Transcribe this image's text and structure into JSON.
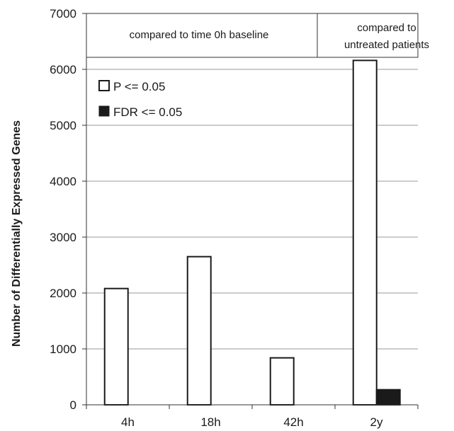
{
  "chart_data": {
    "type": "bar",
    "categories": [
      "4h",
      "18h",
      "42h",
      "2y"
    ],
    "series": [
      {
        "name": "P <= 0.05",
        "values": [
          2080,
          2650,
          840,
          6160
        ],
        "color": "#ffffff"
      },
      {
        "name": "FDR <= 0.05",
        "values": [
          0,
          0,
          0,
          270
        ],
        "color": "#1a1a1a"
      }
    ],
    "title": "",
    "xlabel": "",
    "ylabel": "Number of Differentially Expressed Genes",
    "ylim": [
      0,
      7000
    ],
    "yticks": [
      "0",
      "1000",
      "2000",
      "3000",
      "4000",
      "5000",
      "6000",
      "7000"
    ],
    "grid": true,
    "legend_position": "top-left",
    "annotations": [
      {
        "text": "compared to time 0h baseline",
        "span": [
          "4h",
          "42h"
        ]
      },
      {
        "text_lines": [
          "compared to",
          "untreated patients"
        ],
        "span": [
          "2y",
          "2y"
        ]
      }
    ]
  }
}
